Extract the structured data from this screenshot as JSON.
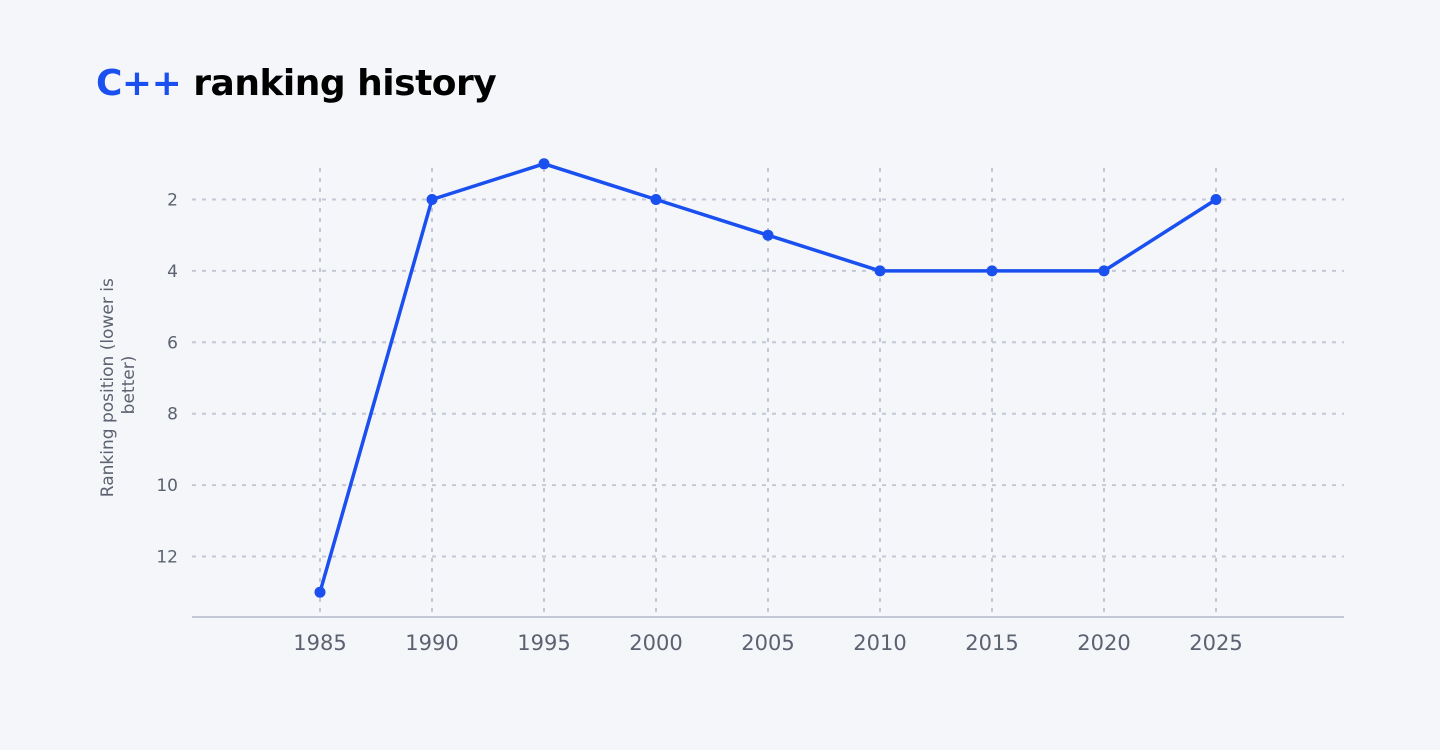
{
  "title": {
    "highlight": "C++",
    "rest": " ranking history"
  },
  "colors": {
    "accent": "#1a4ff0",
    "grid": "#c3c7d6",
    "axis": "#c3c7d6",
    "tick_text": "#5c6270",
    "background": "#f4f6fa"
  },
  "chart_data": {
    "type": "line",
    "title": "C++ ranking history",
    "xlabel": "",
    "ylabel": "Ranking position (lower is better)",
    "ylabel_lines": [
      "Ranking position (lower is",
      "better)"
    ],
    "x": [
      1985,
      1990,
      1995,
      2000,
      2005,
      2010,
      2015,
      2020,
      2025
    ],
    "series": [
      {
        "values": [
          13,
          2,
          1,
          2,
          3,
          4,
          4,
          4,
          2
        ]
      }
    ],
    "xlim": [
      1980,
      2031
    ],
    "ylim": [
      13.6,
      0.6
    ],
    "y_inverted": true,
    "xticks": [
      1985,
      1990,
      1995,
      2000,
      2005,
      2010,
      2015,
      2020,
      2025
    ],
    "yticks": [
      2,
      4,
      6,
      8,
      10,
      12
    ],
    "grid": true,
    "grid_style": "dotted",
    "legend": "none"
  }
}
